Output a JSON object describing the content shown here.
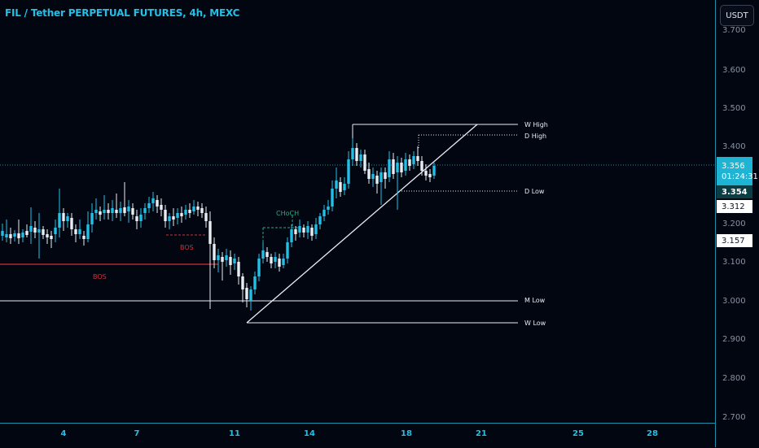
{
  "header": {
    "title": "FIL / Tether PERPETUAL FUTURES, 4h, MEXC",
    "currency_button": "USDT"
  },
  "price_axis": {
    "ticks": [
      "3.700",
      "3.600",
      "3.500",
      "3.400",
      "3.200",
      "3.100",
      "3.000",
      "2.900",
      "2.800",
      "2.700"
    ],
    "tags": {
      "last_price": "3.356",
      "countdown": "01:24:31",
      "level_1": "3.354",
      "level_2": "3.312",
      "level_3": "3.157"
    }
  },
  "time_axis": {
    "ticks": [
      "4",
      "7",
      "11",
      "14",
      "18",
      "21",
      "25",
      "28"
    ]
  },
  "annotations": {
    "w_high": "W High",
    "d_high": "D High",
    "d_low": "D Low",
    "m_low": "M Low",
    "w_low": "W Low",
    "bos_1": "BOS",
    "bos_2": "BOS",
    "choch": "CHoCH"
  },
  "colors": {
    "background": "#020611",
    "accent": "#22c0e6",
    "bull_candle": "#22c0e6",
    "bear_candle": "#ffffff",
    "bos_red": "#d2303a",
    "choch_green": "#2fa884"
  }
}
